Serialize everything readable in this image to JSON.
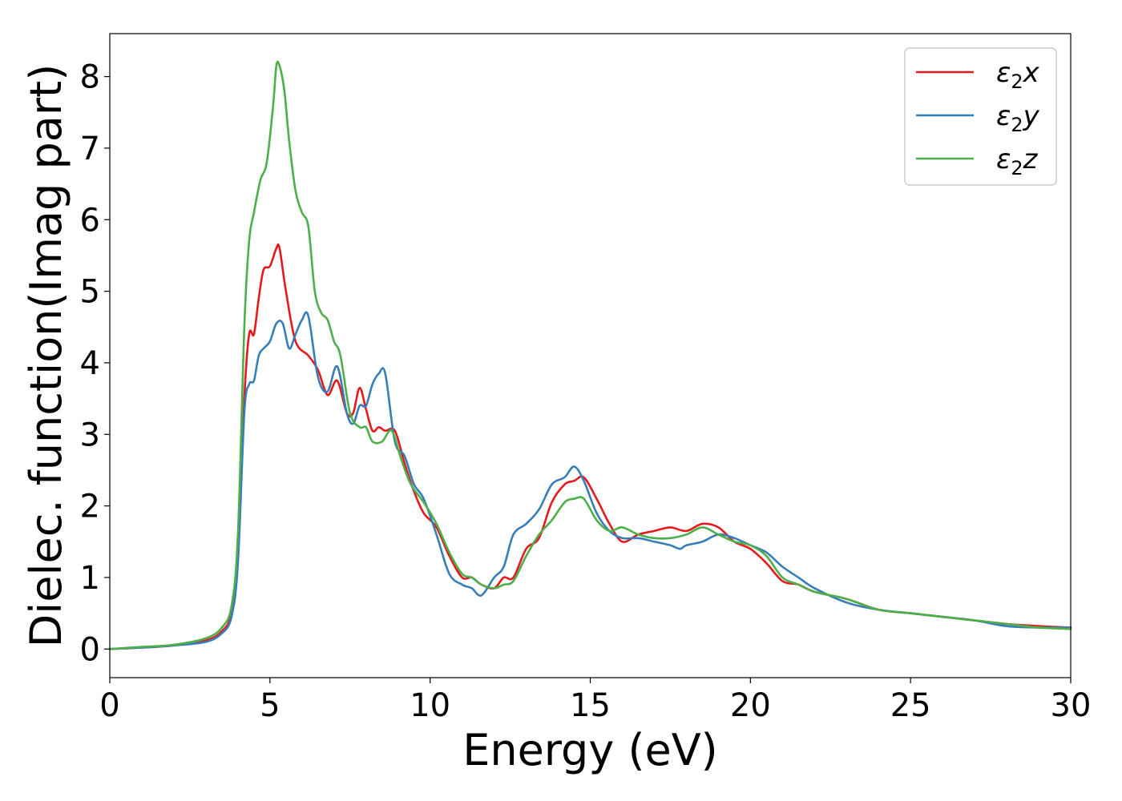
{
  "chart_data": {
    "type": "line",
    "title": "",
    "xlabel": "Energy (eV)",
    "ylabel": "Dielec. function(Imag part)",
    "xlim": [
      0,
      30
    ],
    "ylim": [
      -0.4,
      8.6
    ],
    "xticks": [
      0,
      5,
      10,
      15,
      20,
      25,
      30
    ],
    "yticks": [
      0,
      1,
      2,
      3,
      4,
      5,
      6,
      7,
      8
    ],
    "grid": false,
    "legend": "top-right",
    "series": [
      {
        "name_base": "ε",
        "name_sub": "2",
        "name_suffix": "x",
        "color": "#e41a1c",
        "x": [
          0,
          1,
          2,
          3,
          3.5,
          3.8,
          4.0,
          4.2,
          4.35,
          4.5,
          4.65,
          4.8,
          5.0,
          5.2,
          5.3,
          5.5,
          5.8,
          6.2,
          6.5,
          6.8,
          7.1,
          7.4,
          7.6,
          7.8,
          8.0,
          8.2,
          8.4,
          8.6,
          8.9,
          9.2,
          9.5,
          9.8,
          10.2,
          10.6,
          11.0,
          11.3,
          11.6,
          12.0,
          12.3,
          12.6,
          13.0,
          13.4,
          13.8,
          14.2,
          14.5,
          14.8,
          15.2,
          15.6,
          16.0,
          16.5,
          17.0,
          17.5,
          18.0,
          18.5,
          19.0,
          19.5,
          20.0,
          20.5,
          21.0,
          21.5,
          22.0,
          23.0,
          24.0,
          25.0,
          26.0,
          27.0,
          28.0,
          29.0,
          30.0
        ],
        "y": [
          0,
          0.02,
          0.05,
          0.12,
          0.25,
          0.5,
          1.3,
          3.5,
          4.4,
          4.4,
          4.9,
          5.3,
          5.35,
          5.6,
          5.6,
          5.0,
          4.3,
          4.1,
          3.9,
          3.55,
          3.75,
          3.3,
          3.3,
          3.65,
          3.35,
          3.05,
          3.1,
          3.05,
          3.05,
          2.6,
          2.2,
          1.9,
          1.7,
          1.3,
          1.0,
          1.0,
          0.9,
          0.85,
          1.0,
          1.0,
          1.4,
          1.55,
          2.05,
          2.3,
          2.35,
          2.4,
          2.1,
          1.75,
          1.5,
          1.6,
          1.65,
          1.7,
          1.65,
          1.75,
          1.7,
          1.5,
          1.4,
          1.2,
          0.95,
          0.9,
          0.8,
          0.7,
          0.55,
          0.5,
          0.45,
          0.4,
          0.35,
          0.32,
          0.3
        ]
      },
      {
        "name_base": "ε",
        "name_sub": "2",
        "name_suffix": "y",
        "color": "#377eb8",
        "x": [
          0,
          1,
          2,
          3,
          3.5,
          3.8,
          4.0,
          4.2,
          4.35,
          4.5,
          4.65,
          4.8,
          5.0,
          5.2,
          5.4,
          5.6,
          5.8,
          6.0,
          6.2,
          6.5,
          6.8,
          7.1,
          7.4,
          7.6,
          7.8,
          8.0,
          8.2,
          8.4,
          8.6,
          8.9,
          9.2,
          9.5,
          9.8,
          10.2,
          10.6,
          11.0,
          11.3,
          11.6,
          12.0,
          12.3,
          12.6,
          13.0,
          13.4,
          13.8,
          14.2,
          14.5,
          14.8,
          15.2,
          15.6,
          16.0,
          16.5,
          17.0,
          17.5,
          17.8,
          18.0,
          18.5,
          19.0,
          19.5,
          20.0,
          20.5,
          21.0,
          21.5,
          22.0,
          23.0,
          24.0,
          25.0,
          26.0,
          27.0,
          28.0,
          29.0,
          30.0
        ],
        "y": [
          0,
          0.02,
          0.05,
          0.1,
          0.22,
          0.45,
          1.2,
          3.3,
          3.7,
          3.75,
          4.1,
          4.2,
          4.3,
          4.55,
          4.55,
          4.2,
          4.4,
          4.6,
          4.65,
          3.8,
          3.6,
          3.95,
          3.3,
          3.15,
          3.4,
          3.4,
          3.7,
          3.85,
          3.85,
          2.9,
          2.7,
          2.3,
          2.1,
          1.6,
          1.05,
          0.9,
          0.85,
          0.75,
          1.0,
          1.15,
          1.6,
          1.75,
          1.95,
          2.3,
          2.4,
          2.55,
          2.35,
          1.9,
          1.65,
          1.55,
          1.55,
          1.5,
          1.45,
          1.4,
          1.45,
          1.5,
          1.6,
          1.55,
          1.45,
          1.35,
          1.15,
          1.0,
          0.85,
          0.65,
          0.55,
          0.5,
          0.45,
          0.4,
          0.32,
          0.3,
          0.3
        ]
      },
      {
        "name_base": "ε",
        "name_sub": "2",
        "name_suffix": "z",
        "color": "#4daf4a",
        "x": [
          0,
          1,
          2,
          3,
          3.5,
          3.8,
          4.0,
          4.2,
          4.35,
          4.5,
          4.7,
          4.9,
          5.1,
          5.2,
          5.3,
          5.45,
          5.6,
          5.8,
          6.0,
          6.2,
          6.4,
          6.6,
          6.8,
          7.0,
          7.2,
          7.5,
          7.8,
          8.0,
          8.2,
          8.5,
          8.8,
          9.1,
          9.4,
          9.8,
          10.2,
          10.6,
          11.0,
          11.3,
          11.6,
          12.0,
          12.3,
          12.6,
          13.0,
          13.4,
          13.8,
          14.2,
          14.5,
          14.8,
          15.2,
          15.6,
          16.0,
          16.5,
          17.0,
          17.5,
          18.0,
          18.5,
          19.0,
          19.5,
          20.0,
          20.5,
          21.0,
          21.5,
          22.0,
          23.0,
          24.0,
          25.0,
          26.0,
          27.0,
          28.0,
          29.0,
          30.0
        ],
        "y": [
          0,
          0.03,
          0.06,
          0.15,
          0.3,
          0.6,
          1.6,
          4.5,
          5.7,
          6.1,
          6.55,
          6.8,
          7.6,
          8.15,
          8.15,
          7.8,
          7.1,
          6.4,
          6.1,
          5.9,
          5.0,
          4.7,
          4.6,
          4.3,
          4.1,
          3.3,
          3.1,
          3.1,
          2.9,
          2.9,
          3.05,
          2.65,
          2.3,
          2.05,
          1.75,
          1.35,
          1.05,
          1.0,
          0.9,
          0.85,
          0.9,
          0.95,
          1.3,
          1.6,
          1.8,
          2.05,
          2.1,
          2.1,
          1.8,
          1.65,
          1.7,
          1.6,
          1.55,
          1.55,
          1.6,
          1.7,
          1.6,
          1.5,
          1.45,
          1.3,
          1.0,
          0.9,
          0.8,
          0.7,
          0.55,
          0.5,
          0.45,
          0.4,
          0.35,
          0.3,
          0.28
        ]
      }
    ]
  }
}
